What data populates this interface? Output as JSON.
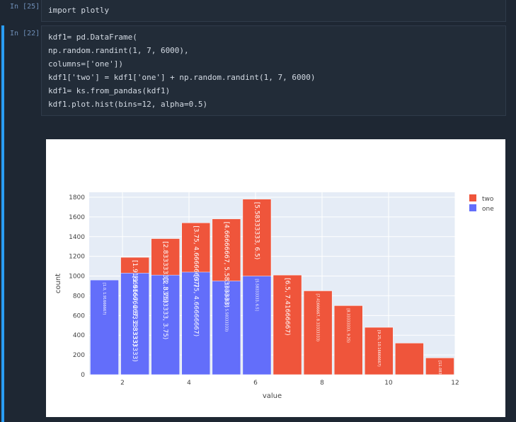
{
  "cells": [
    {
      "prompt": "In [25]:",
      "lines": [
        "import plotly"
      ]
    },
    {
      "prompt": "In [22]:",
      "lines": [
        "kdf1= pd.DataFrame(",
        "np.random.randint(1, 7, 6000),",
        "columns=['one'])",
        "kdf1['two'] = kdf1['one'] + np.random.randint(1, 7, 6000)",
        "kdf1= ks.from_pandas(kdf1)",
        "kdf1.plot.hist(bins=12, alpha=0.5)"
      ]
    }
  ],
  "colors": {
    "one": "#636efa",
    "two": "#ef553b",
    "plot_bg": "#e5ecf6",
    "accent": "#2a9df4"
  },
  "chart_data": {
    "type": "bar",
    "barmode": "overlay-stacked",
    "xlabel": "value",
    "ylabel": "count",
    "xlim": [
      1,
      12
    ],
    "ylim": [
      0,
      1850
    ],
    "xticks": [
      2,
      4,
      6,
      8,
      10,
      12
    ],
    "yticks": [
      0,
      200,
      400,
      600,
      800,
      1000,
      1200,
      1400,
      1600,
      1800
    ],
    "legend": [
      "two",
      "one"
    ],
    "legend_position": "top-right",
    "series": [
      {
        "name": "one",
        "bins": [
          {
            "x0": 1,
            "x1": 1.916666667,
            "value": 960,
            "label": "[1.0, 1.91666667)"
          },
          {
            "x0": 1.916666667,
            "x1": 2.833333333,
            "value": 1030,
            "label": "[1.91666667, 2.83333333)"
          },
          {
            "x0": 2.833333333,
            "x1": 3.75,
            "value": 1010,
            "label": "[2.83333333, 3.75)"
          },
          {
            "x0": 3.75,
            "x1": 4.666666667,
            "value": 1040,
            "label": "[3.75, 4.66666667)"
          },
          {
            "x0": 4.666666667,
            "x1": 5.583333333,
            "value": 950,
            "label": "[4.66666667, 5.58333333)"
          },
          {
            "x0": 5.583333333,
            "x1": 6.5,
            "value": 1000,
            "label": "[5.58333333, 6.5]"
          }
        ]
      },
      {
        "name": "two",
        "bins": [
          {
            "x0": 1.916666667,
            "x1": 2.833333333,
            "value": 1190,
            "label": "[1.91666667, 2.83333333)"
          },
          {
            "x0": 2.833333333,
            "x1": 3.75,
            "value": 1380,
            "label": "[2.83333333, 3.75)"
          },
          {
            "x0": 3.75,
            "x1": 4.666666667,
            "value": 1540,
            "label": "[3.75, 4.66666667)"
          },
          {
            "x0": 4.666666667,
            "x1": 5.583333333,
            "value": 1580,
            "label": "[4.66666667, 5.58333333)"
          },
          {
            "x0": 5.583333333,
            "x1": 6.5,
            "value": 1780,
            "label": "[5.58333333, 6.5)"
          },
          {
            "x0": 6.5,
            "x1": 7.416666667,
            "value": 1010,
            "label": "[6.5, 7.41666667)"
          },
          {
            "x0": 7.416666667,
            "x1": 8.333333333,
            "value": 850,
            "label": "[7.41666667, 8.33333333)"
          },
          {
            "x0": 8.333333333,
            "x1": 9.25,
            "value": 700,
            "label": "[8.33333333, 9.25)"
          },
          {
            "x0": 9.25,
            "x1": 10.16666667,
            "value": 480,
            "label": "[9.25, 10.16666667)"
          },
          {
            "x0": 10.16666667,
            "x1": 11.08333333,
            "value": 320,
            "label": ""
          },
          {
            "x0": 11.08333333,
            "x1": 12,
            "value": 170,
            "label": "[11.08333333, 12.0]"
          }
        ]
      }
    ]
  }
}
